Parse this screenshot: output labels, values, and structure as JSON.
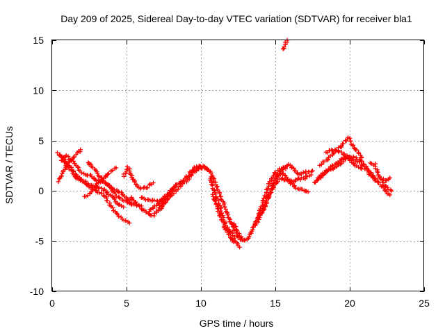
{
  "chart_data": {
    "type": "scatter",
    "title": "Day 209 of 2025, Sidereal Day-to-day VTEC variation (SDTVAR) for receiver bla1",
    "xlabel": "GPS time / hours",
    "ylabel": "SDTVAR / TECUs",
    "xlim": [
      0,
      25
    ],
    "ylim": [
      -10,
      15
    ],
    "xticks": [
      0,
      5,
      10,
      15,
      20,
      25
    ],
    "yticks": [
      -10,
      -5,
      0,
      5,
      10,
      15
    ],
    "xtick_labels": [
      "0",
      "5",
      "10",
      "15",
      "20",
      "25"
    ],
    "ytick_labels": [
      "-10",
      "-5",
      "0",
      "5",
      "10",
      "15"
    ],
    "grid": true,
    "marker": "+",
    "color": "#ff0000",
    "series": [
      {
        "name": "SDTVAR",
        "approx_tracks": [
          [
            [
              0.4,
              3.8
            ],
            [
              0.8,
              3.2
            ],
            [
              1.2,
              2.4
            ],
            [
              1.6,
              1.6
            ],
            [
              2.0,
              1.1
            ],
            [
              2.4,
              0.7
            ],
            [
              2.8,
              0.5
            ],
            [
              3.2,
              0.3
            ],
            [
              3.6,
              0.0
            ],
            [
              4.0,
              -0.5
            ],
            [
              4.4,
              -1.2
            ],
            [
              4.8,
              -1.6
            ]
          ],
          [
            [
              0.4,
              1.0
            ],
            [
              0.8,
              2.0
            ],
            [
              1.2,
              3.0
            ],
            [
              1.6,
              3.6
            ],
            [
              1.9,
              4.1
            ]
          ],
          [
            [
              0.5,
              3.6
            ],
            [
              0.9,
              2.7
            ],
            [
              1.3,
              2.0
            ],
            [
              1.7,
              1.3
            ],
            [
              2.1,
              0.9
            ],
            [
              2.5,
              0.4
            ],
            [
              2.9,
              0.1
            ],
            [
              3.3,
              -0.2
            ],
            [
              3.7,
              -0.9
            ],
            [
              4.1,
              -1.9
            ],
            [
              4.5,
              -2.6
            ],
            [
              4.9,
              -3.0
            ],
            [
              5.2,
              -3.2
            ]
          ],
          [
            [
              0.6,
              3.0
            ],
            [
              1.0,
              3.5
            ],
            [
              1.4,
              2.9
            ],
            [
              1.8,
              2.1
            ],
            [
              2.2,
              1.7
            ],
            [
              2.6,
              1.5
            ],
            [
              3.0,
              1.0
            ],
            [
              3.4,
              0.9
            ],
            [
              3.8,
              0.6
            ],
            [
              4.2,
              -0.2
            ],
            [
              4.6,
              -0.8
            ],
            [
              5.0,
              -1.1
            ],
            [
              5.3,
              -1.3
            ]
          ],
          [
            [
              2.4,
              2.9
            ],
            [
              2.8,
              2.2
            ],
            [
              3.1,
              1.6
            ],
            [
              3.5,
              0.9
            ],
            [
              3.9,
              0.4
            ],
            [
              4.3,
              0.0
            ],
            [
              4.7,
              -0.3
            ],
            [
              5.0,
              -0.8
            ],
            [
              5.3,
              -1.2
            ],
            [
              5.6,
              -1.4
            ],
            [
              6.0,
              -1.5
            ]
          ],
          [
            [
              2.2,
              -0.6
            ],
            [
              2.5,
              -0.3
            ],
            [
              2.8,
              0.2
            ],
            [
              3.1,
              0.8
            ],
            [
              3.4,
              1.1
            ],
            [
              3.7,
              1.6
            ],
            [
              4.0,
              2.0
            ],
            [
              4.3,
              2.3
            ]
          ],
          [
            [
              4.8,
              1.5
            ],
            [
              5.1,
              2.4
            ],
            [
              5.4,
              1.2
            ],
            [
              5.7,
              0.4
            ],
            [
              6.0,
              0.2
            ],
            [
              6.4,
              0.4
            ],
            [
              6.8,
              0.8
            ]
          ],
          [
            [
              5.3,
              -0.6
            ],
            [
              5.6,
              -1.2
            ],
            [
              5.9,
              -1.6
            ],
            [
              6.2,
              -2.0
            ],
            [
              6.5,
              -2.4
            ],
            [
              6.8,
              -2.4
            ],
            [
              7.1,
              -2.0
            ],
            [
              7.4,
              -1.6
            ],
            [
              7.7,
              -0.9
            ],
            [
              8.0,
              0.0
            ],
            [
              8.3,
              0.6
            ]
          ],
          [
            [
              6.0,
              -0.7
            ],
            [
              6.4,
              -0.8
            ],
            [
              6.8,
              -1.0
            ],
            [
              7.2,
              -1.0
            ],
            [
              7.6,
              -0.8
            ],
            [
              8.0,
              -0.2
            ]
          ],
          [
            [
              6.5,
              -2.0
            ],
            [
              6.9,
              -1.5
            ],
            [
              7.2,
              -1.2
            ],
            [
              7.5,
              -0.7
            ],
            [
              7.8,
              -0.3
            ],
            [
              8.1,
              0.2
            ],
            [
              8.5,
              0.7
            ],
            [
              8.9,
              1.2
            ],
            [
              9.3,
              1.7
            ],
            [
              9.7,
              2.2
            ],
            [
              10.1,
              2.3
            ],
            [
              10.5,
              2.1
            ]
          ],
          [
            [
              7.2,
              -1.6
            ],
            [
              7.5,
              -1.1
            ],
            [
              7.8,
              -0.7
            ],
            [
              8.2,
              -0.1
            ],
            [
              8.6,
              0.5
            ],
            [
              9.0,
              1.0
            ],
            [
              9.4,
              1.6
            ],
            [
              9.7,
              2.1
            ],
            [
              9.9,
              2.5
            ]
          ],
          [
            [
              9.3,
              1.8
            ],
            [
              9.6,
              2.3
            ],
            [
              10.0,
              2.5
            ],
            [
              10.4,
              2.3
            ],
            [
              10.7,
              1.6
            ],
            [
              11.0,
              0.6
            ],
            [
              11.3,
              -0.5
            ],
            [
              11.6,
              -1.5
            ],
            [
              11.9,
              -2.7
            ],
            [
              12.2,
              -3.8
            ],
            [
              12.5,
              -4.6
            ],
            [
              12.8,
              -4.9
            ]
          ],
          [
            [
              10.6,
              1.2
            ],
            [
              10.9,
              0.0
            ],
            [
              11.2,
              -1.3
            ],
            [
              11.5,
              -2.6
            ],
            [
              11.8,
              -3.7
            ],
            [
              12.1,
              -4.3
            ],
            [
              12.4,
              -5.2
            ],
            [
              12.6,
              -5.6
            ]
          ],
          [
            [
              10.8,
              -0.4
            ],
            [
              11.1,
              -1.7
            ],
            [
              11.4,
              -2.9
            ],
            [
              11.7,
              -3.9
            ],
            [
              12.0,
              -4.7
            ],
            [
              12.2,
              -5.1
            ]
          ],
          [
            [
              12.0,
              -3.0
            ],
            [
              12.3,
              -3.6
            ],
            [
              12.6,
              -4.4
            ],
            [
              12.9,
              -5.0
            ],
            [
              13.2,
              -4.7
            ],
            [
              13.5,
              -3.7
            ],
            [
              13.8,
              -2.6
            ],
            [
              14.1,
              -1.5
            ],
            [
              14.4,
              -0.1
            ],
            [
              14.7,
              1.1
            ],
            [
              15.0,
              1.8
            ],
            [
              15.4,
              2.3
            ],
            [
              15.8,
              2.5
            ]
          ],
          [
            [
              13.6,
              -3.4
            ],
            [
              13.9,
              -2.8
            ],
            [
              14.2,
              -1.6
            ],
            [
              14.5,
              -0.7
            ],
            [
              14.8,
              0.2
            ],
            [
              15.1,
              0.9
            ],
            [
              15.4,
              1.2
            ],
            [
              15.8,
              1.1
            ],
            [
              16.2,
              1.0
            ],
            [
              16.6,
              1.2
            ],
            [
              17.0,
              1.3
            ],
            [
              17.4,
              1.6
            ]
          ],
          [
            [
              14.0,
              -2.3
            ],
            [
              14.3,
              -1.6
            ],
            [
              14.6,
              -0.4
            ],
            [
              14.9,
              0.8
            ],
            [
              15.2,
              1.6
            ],
            [
              15.5,
              2.1
            ],
            [
              15.9,
              2.6
            ],
            [
              16.3,
              2.1
            ],
            [
              16.7,
              1.6
            ],
            [
              17.1,
              1.9
            ],
            [
              17.5,
              2.0
            ]
          ],
          [
            [
              14.8,
              1.0
            ],
            [
              15.2,
              1.6
            ],
            [
              15.6,
              1.8
            ],
            [
              16.0,
              0.8
            ],
            [
              16.4,
              0.3
            ],
            [
              16.8,
              0.2
            ],
            [
              17.2,
              -0.1
            ]
          ],
          [
            [
              15.5,
              14.1
            ],
            [
              15.6,
              14.4
            ],
            [
              15.7,
              14.7
            ],
            [
              15.8,
              15.0
            ]
          ],
          [
            [
              17.8,
              1.2
            ],
            [
              18.2,
              1.7
            ],
            [
              18.6,
              2.3
            ],
            [
              19.0,
              2.6
            ],
            [
              19.4,
              3.1
            ],
            [
              19.8,
              3.4
            ],
            [
              20.2,
              3.2
            ],
            [
              20.6,
              2.9
            ],
            [
              21.0,
              2.4
            ],
            [
              21.4,
              1.6
            ],
            [
              21.7,
              1.0
            ]
          ],
          [
            [
              17.6,
              0.8
            ],
            [
              18.0,
              1.3
            ],
            [
              18.4,
              1.8
            ],
            [
              18.8,
              2.2
            ],
            [
              19.2,
              2.5
            ],
            [
              19.6,
              3.0
            ],
            [
              20.0,
              3.5
            ],
            [
              20.4,
              3.3
            ],
            [
              20.8,
              2.9
            ],
            [
              21.2,
              2.2
            ],
            [
              21.5,
              1.5
            ]
          ],
          [
            [
              18.0,
              2.6
            ],
            [
              18.4,
              3.0
            ],
            [
              18.8,
              3.6
            ],
            [
              19.2,
              4.1
            ],
            [
              19.6,
              4.8
            ],
            [
              19.9,
              5.3
            ],
            [
              20.2,
              4.6
            ],
            [
              20.5,
              4.0
            ],
            [
              20.8,
              3.3
            ]
          ],
          [
            [
              18.4,
              3.8
            ],
            [
              18.8,
              4.1
            ],
            [
              19.2,
              4.0
            ],
            [
              19.6,
              3.6
            ],
            [
              20.0,
              3.1
            ],
            [
              20.4,
              2.5
            ],
            [
              20.8,
              2.2
            ]
          ],
          [
            [
              21.4,
              2.7
            ],
            [
              21.7,
              2.6
            ],
            [
              22.0,
              1.3
            ],
            [
              22.3,
              0.6
            ],
            [
              22.6,
              0.2
            ],
            [
              22.8,
              0.0
            ]
          ],
          [
            [
              21.6,
              1.5
            ],
            [
              21.9,
              0.9
            ],
            [
              22.2,
              0.4
            ],
            [
              22.5,
              -0.2
            ],
            [
              22.7,
              -0.4
            ]
          ],
          [
            [
              22.3,
              1.2
            ],
            [
              22.5,
              1.0
            ],
            [
              22.7,
              1.3
            ]
          ]
        ]
      }
    ]
  }
}
